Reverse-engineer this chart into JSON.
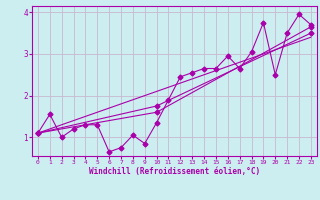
{
  "xlabel": "Windchill (Refroidissement éolien,°C)",
  "bg_color": "#cceef0",
  "grid_color": "#c8b8d0",
  "line_color": "#aa00aa",
  "xlim": [
    -0.5,
    23.5
  ],
  "ylim": [
    0.55,
    4.15
  ],
  "xticks": [
    0,
    1,
    2,
    3,
    4,
    5,
    6,
    7,
    8,
    9,
    10,
    11,
    12,
    13,
    14,
    15,
    16,
    17,
    18,
    19,
    20,
    21,
    22,
    23
  ],
  "yticks": [
    1,
    2,
    3,
    4
  ],
  "series1_x": [
    0,
    1,
    2,
    3,
    4,
    5,
    6,
    7,
    8,
    9,
    10,
    11,
    12,
    13,
    14,
    15,
    16,
    17,
    18,
    19,
    20,
    21,
    22,
    23
  ],
  "series1_y": [
    1.1,
    1.55,
    1.0,
    1.2,
    1.3,
    1.3,
    0.65,
    0.75,
    1.05,
    0.85,
    1.35,
    1.9,
    2.45,
    2.55,
    2.65,
    2.65,
    2.95,
    2.65,
    3.05,
    3.75,
    2.5,
    3.5,
    3.95,
    3.7
  ],
  "series2_x": [
    0,
    10,
    23
  ],
  "series2_y": [
    1.1,
    1.6,
    3.65
  ],
  "series3_x": [
    0,
    10,
    23
  ],
  "series3_y": [
    1.1,
    1.75,
    3.5
  ],
  "series4_x": [
    0,
    23
  ],
  "series4_y": [
    1.1,
    3.4
  ],
  "marker": "D",
  "markersize": 2.5
}
